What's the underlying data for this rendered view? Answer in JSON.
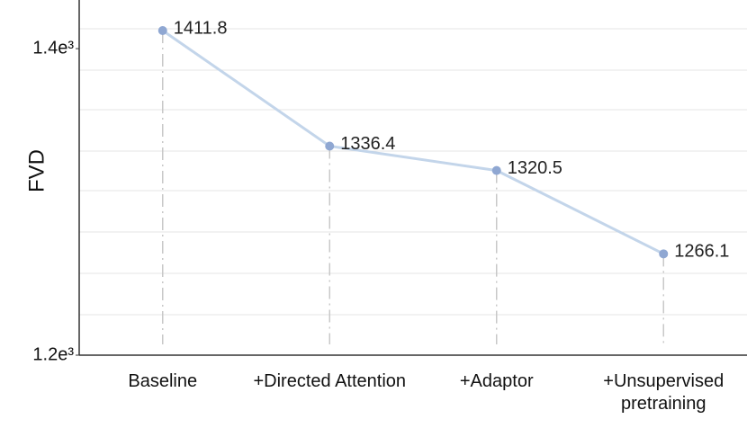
{
  "chart_data": {
    "type": "line",
    "y_label": "FVD",
    "categories": [
      "Baseline",
      "+Directed Attention",
      "+Adaptor",
      "+Unsupervised pretraining"
    ],
    "series": [
      {
        "name": "FVD",
        "color": "#c3d5ea",
        "marker_color": "#8fa7d2",
        "values": [
          1411.8,
          1336.4,
          1320.5,
          1266.1
        ]
      }
    ],
    "ylim": [
      1200,
      1420
    ],
    "yticks": [
      {
        "value": 1200,
        "label": "1.2e³"
      },
      {
        "value": 1400,
        "label": "1.4e³"
      }
    ],
    "drop_lines": true
  }
}
